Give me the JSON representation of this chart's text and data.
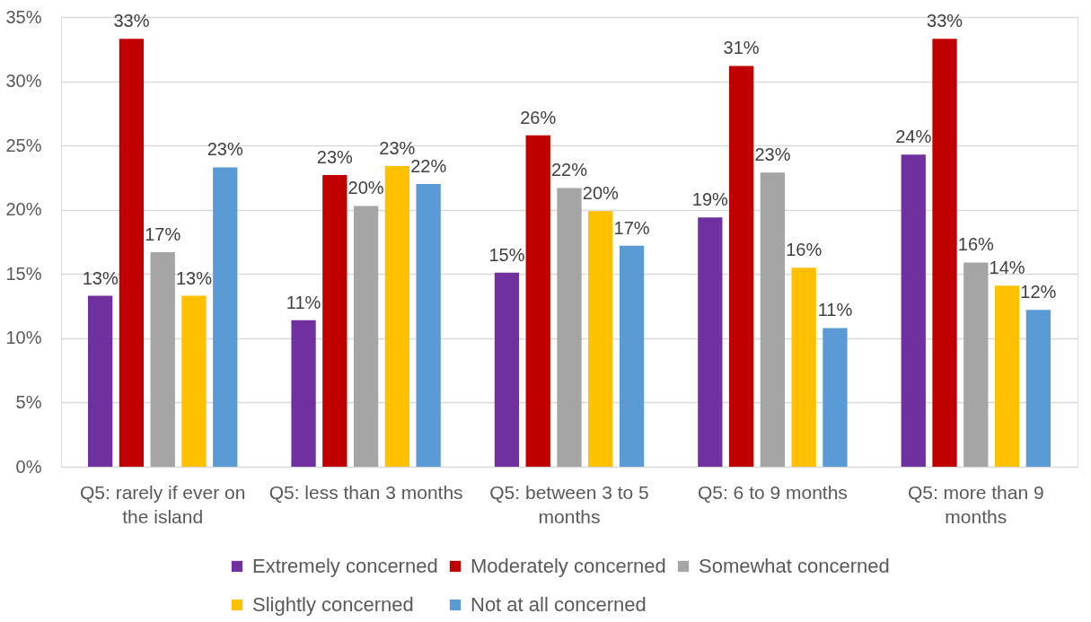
{
  "chart_data": {
    "type": "bar",
    "categories": [
      "Q5: rarely if ever on the island",
      "Q5: less than 3 months",
      "Q5: between 3 to 5 months",
      "Q5: 6 to 9 months",
      "Q5: more than 9 months"
    ],
    "series": [
      {
        "name": "Extremely concerned",
        "color": "#7030a0",
        "values": [
          13.3,
          11.4,
          15.1,
          19.4,
          24.3
        ],
        "value_labels": [
          "13%",
          "11%",
          "15%",
          "19%",
          "24%"
        ]
      },
      {
        "name": "Moderately concerned",
        "color": "#c00000",
        "values": [
          33.3,
          22.7,
          25.8,
          31.2,
          33.3
        ],
        "value_labels": [
          "33%",
          "23%",
          "26%",
          "31%",
          "33%"
        ]
      },
      {
        "name": "Somewhat concerned",
        "color": "#a5a5a5",
        "values": [
          16.7,
          20.3,
          21.7,
          22.9,
          15.9
        ],
        "value_labels": [
          "17%",
          "20%",
          "22%",
          "23%",
          "16%"
        ]
      },
      {
        "name": "Slightly concerned",
        "color": "#ffc000",
        "values": [
          13.3,
          23.4,
          19.9,
          15.5,
          14.1
        ],
        "value_labels": [
          "13%",
          "23%",
          "20%",
          "16%",
          "14%"
        ]
      },
      {
        "name": "Not at all concerned",
        "color": "#5b9bd5",
        "values": [
          23.3,
          22.0,
          17.2,
          10.8,
          12.2
        ],
        "value_labels": [
          "23%",
          "22%",
          "17%",
          "11%",
          "12%"
        ]
      }
    ],
    "ylim": [
      0,
      35
    ],
    "yticks": [
      {
        "value": 0,
        "label": "0%"
      },
      {
        "value": 5,
        "label": "5%"
      },
      {
        "value": 10,
        "label": "10%"
      },
      {
        "value": 15,
        "label": "15%"
      },
      {
        "value": 20,
        "label": "20%"
      },
      {
        "value": 25,
        "label": "25%"
      },
      {
        "value": 30,
        "label": "30%"
      },
      {
        "value": 35,
        "label": "35%"
      }
    ],
    "grid": "y",
    "legend": "bottom"
  }
}
